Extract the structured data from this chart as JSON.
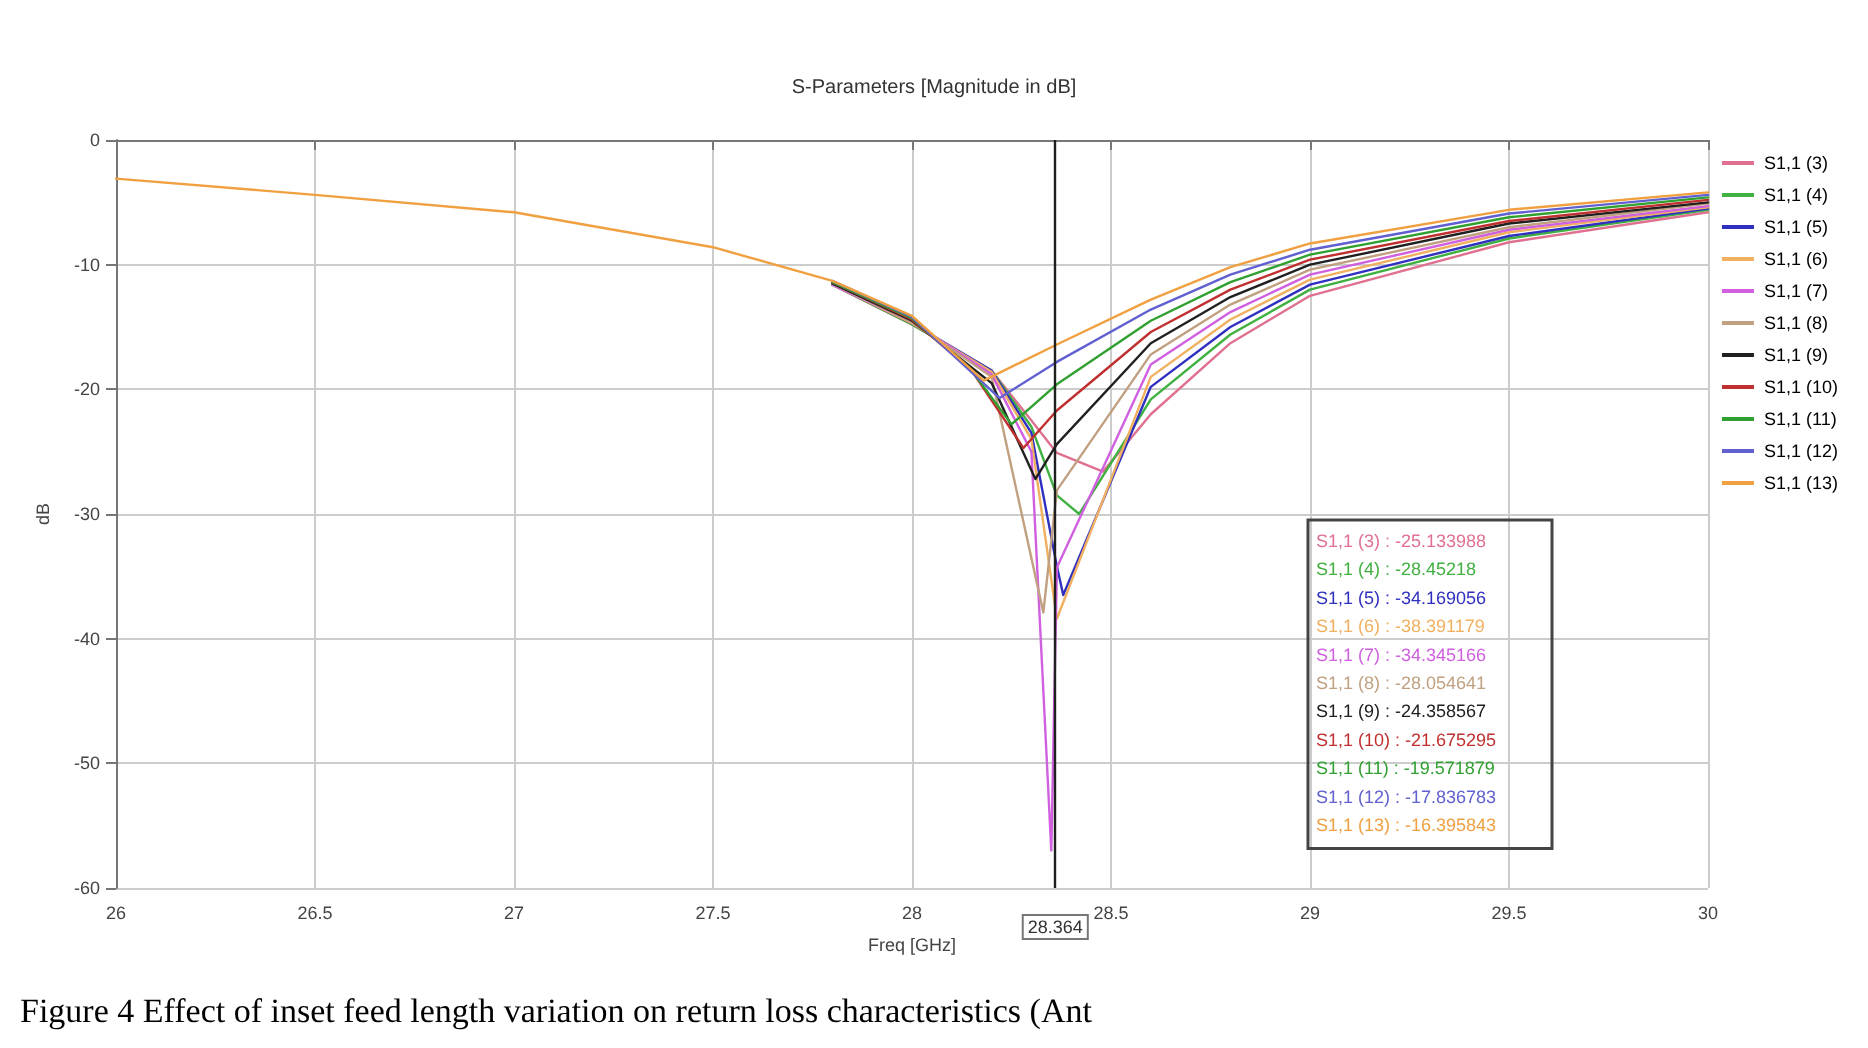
{
  "chart_data": {
    "type": "line",
    "title": "S-Parameters [Magnitude in dB]",
    "xlabel": "Freq [GHz]",
    "ylabel": "dB",
    "xlim": [
      26,
      30
    ],
    "xticks": [
      26,
      26.5,
      27,
      27.5,
      28,
      28.5,
      29,
      29.5,
      30
    ],
    "ylim": [
      -60,
      0
    ],
    "yticks": [
      -60,
      -50,
      -40,
      -30,
      -20,
      -10,
      0
    ],
    "grid": true,
    "legend": "right",
    "marker": "none",
    "line_style": "solid",
    "ref_lines": [
      {
        "axis": "x",
        "value": 28.364,
        "label": "28.364",
        "color": "#202020"
      }
    ],
    "annotations": [
      "S1,1 (3) : -25.133988",
      "S1,1 (4) : -28.45218",
      "S1,1 (5) : -34.169056",
      "S1,1 (6) : -38.391179",
      "S1,1 (7) : -34.345166",
      "S1,1 (8) : -28.054641",
      "S1,1 (9) : -24.358567",
      "S1,1 (10) : -21.675295",
      "S1,1 (11) : -19.571879",
      "S1,1 (12) : -17.836783",
      "S1,1 (13) : -16.395843",
      "Figure 4 Effect of inset feed length variation on return loss characteristics (Ant"
    ],
    "series": [
      {
        "name": "S1,1 (3)",
        "color": "#e07090",
        "x": [
          27.8,
          28,
          28.2,
          28.3,
          28.364,
          28.48,
          28.6,
          28.8,
          29,
          29.5,
          30
        ],
        "values": [
          -11.6,
          -14.8,
          -18.5,
          -22.5,
          -25.1,
          -26.6,
          -22,
          -16.3,
          -12.5,
          -8.2,
          -5.8
        ]
      },
      {
        "name": "S1,1 (4)",
        "color": "#40b040",
        "x": [
          27.8,
          28,
          28.2,
          28.3,
          28.364,
          28.42,
          28.6,
          28.8,
          29,
          29.5,
          30
        ],
        "values": [
          -11.6,
          -14.8,
          -18.5,
          -23,
          -28.5,
          -30,
          -20.8,
          -15.6,
          -12,
          -7.9,
          -5.6
        ]
      },
      {
        "name": "S1,1 (5)",
        "color": "#3030c0",
        "x": [
          27.8,
          28,
          28.2,
          28.3,
          28.364,
          28.38,
          28.6,
          28.8,
          29,
          29.5,
          30
        ],
        "values": [
          -11.6,
          -14.7,
          -18.5,
          -23.5,
          -34.2,
          -36.5,
          -19.8,
          -15,
          -11.6,
          -7.7,
          -5.5
        ]
      },
      {
        "name": "S1,1 (6)",
        "color": "#f0b060",
        "x": [
          27.8,
          28,
          28.2,
          28.3,
          28.364,
          28.6,
          28.8,
          29,
          29.5,
          30
        ],
        "values": [
          -11.6,
          -14.7,
          -18.6,
          -24,
          -38.4,
          -19,
          -14.4,
          -11.2,
          -7.4,
          -5.4
        ]
      },
      {
        "name": "S1,1 (7)",
        "color": "#d060e0",
        "x": [
          27.8,
          28,
          28.2,
          28.3,
          28.35,
          28.364,
          28.6,
          28.8,
          29,
          29.5,
          30
        ],
        "values": [
          -11.6,
          -14.6,
          -18.8,
          -25,
          -57,
          -34.3,
          -18,
          -13.8,
          -10.8,
          -7.2,
          -5.3
        ]
      },
      {
        "name": "S1,1 (8)",
        "color": "#c0a080",
        "x": [
          27.8,
          28,
          28.2,
          28.33,
          28.364,
          28.6,
          28.8,
          29,
          29.5,
          30
        ],
        "values": [
          -11.5,
          -14.6,
          -19,
          -37.9,
          -28.1,
          -17.2,
          -13.2,
          -10.4,
          -7,
          -5.1
        ]
      },
      {
        "name": "S1,1 (9)",
        "color": "#202020",
        "x": [
          27.8,
          28,
          28.2,
          28.31,
          28.364,
          28.6,
          28.8,
          29,
          29.5,
          30
        ],
        "values": [
          -11.5,
          -14.5,
          -19.5,
          -27.2,
          -24.4,
          -16.3,
          -12.6,
          -10,
          -6.7,
          -5
        ]
      },
      {
        "name": "S1,1 (10)",
        "color": "#c03030",
        "x": [
          27.8,
          28,
          28.15,
          28.28,
          28.364,
          28.6,
          28.8,
          29,
          29.5,
          30
        ],
        "values": [
          -11.4,
          -14.4,
          -18.5,
          -24.7,
          -21.7,
          -15.4,
          -12,
          -9.6,
          -6.5,
          -4.8
        ]
      },
      {
        "name": "S1,1 (11)",
        "color": "#30a030",
        "x": [
          27.8,
          28,
          28.15,
          28.25,
          28.364,
          28.6,
          28.8,
          29,
          29.5,
          30
        ],
        "values": [
          -11.4,
          -14.3,
          -18.5,
          -22.8,
          -19.6,
          -14.5,
          -11.4,
          -9.2,
          -6.2,
          -4.6
        ]
      },
      {
        "name": "S1,1 (12)",
        "color": "#6060d0",
        "x": [
          27.8,
          28,
          28.22,
          28.364,
          28.6,
          28.8,
          29,
          29.5,
          30
        ],
        "values": [
          -11.3,
          -14.2,
          -20.7,
          -17.8,
          -13.6,
          -10.8,
          -8.8,
          -5.9,
          -4.4
        ]
      },
      {
        "name": "S1,1 (13)",
        "color": "#f0a040",
        "x": [
          26,
          26.5,
          27,
          27.5,
          27.8,
          28,
          28.18,
          28.364,
          28.6,
          28.8,
          29,
          29.5,
          30
        ],
        "values": [
          -3.1,
          -4.4,
          -5.8,
          -8.6,
          -11.3,
          -14.1,
          -19.3,
          -16.4,
          -12.8,
          -10.2,
          -8.3,
          -5.6,
          -4.2
        ]
      }
    ]
  }
}
